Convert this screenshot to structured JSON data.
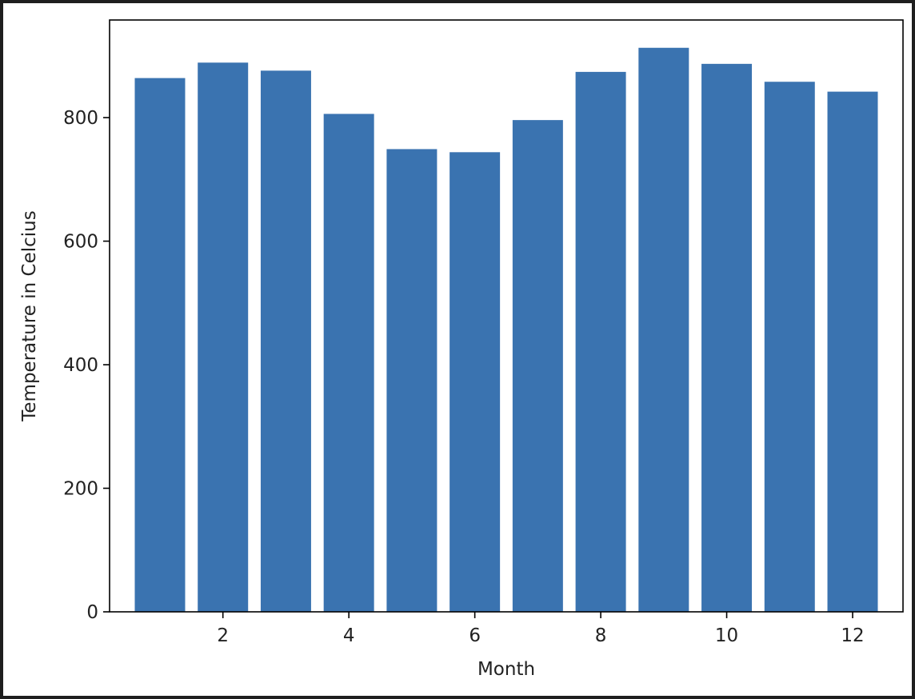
{
  "chart_data": {
    "type": "bar",
    "title": "",
    "xlabel": "Month",
    "ylabel": "Temperature in Celcius",
    "x": [
      1,
      2,
      3,
      4,
      5,
      6,
      7,
      8,
      9,
      10,
      11,
      12
    ],
    "values": [
      864,
      889,
      876,
      806,
      749,
      744,
      796,
      874,
      913,
      887,
      858,
      842
    ],
    "xlim": [
      0.2,
      12.8
    ],
    "ylim": [
      0,
      958
    ],
    "xticks": [
      2,
      4,
      6,
      8,
      10,
      12
    ],
    "xtick_labels": [
      "2",
      "4",
      "6",
      "8",
      "10",
      "12"
    ],
    "yticks": [
      0,
      200,
      400,
      600,
      800
    ],
    "ytick_labels": [
      "0",
      "200",
      "400",
      "600",
      "800"
    ],
    "bar_color": "#3a73b0",
    "grid": false,
    "legend": "none"
  }
}
